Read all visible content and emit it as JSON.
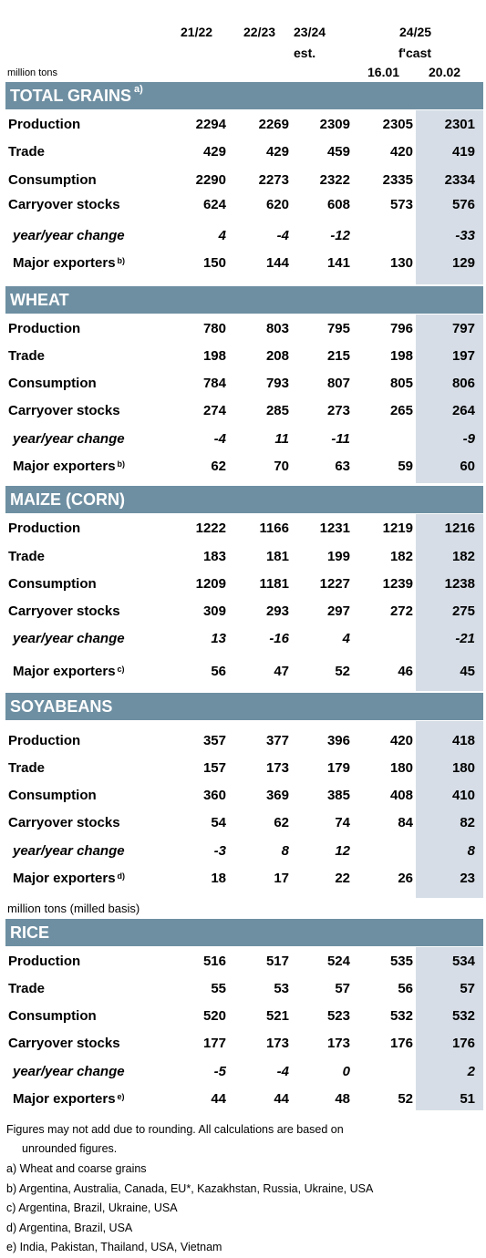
{
  "header": {
    "col1": "21/22",
    "col2": "22/23",
    "col3": "23/24",
    "col3_sub": "est.",
    "forecast": "24/25",
    "forecast_sub": "f'cast",
    "date1": "16.01",
    "date2": "20.02",
    "unit": "million tons"
  },
  "sections": [
    {
      "title": "TOTAL GRAINS",
      "sup": "a)",
      "rows": [
        {
          "label": "Production",
          "values": [
            "2294",
            "2269",
            "2309",
            "2305",
            "2301"
          ]
        },
        {
          "label": "Trade",
          "values": [
            "429",
            "429",
            "459",
            "420",
            "419"
          ]
        },
        {
          "label": "Consumption",
          "values": [
            "2290",
            "2273",
            "2322",
            "2335",
            "2334"
          ]
        },
        {
          "label": "Carryover stocks",
          "values": [
            "624",
            "620",
            "608",
            "573",
            "576"
          ]
        },
        {
          "label": "year/year change",
          "values": [
            "4",
            "-4",
            "-12",
            "",
            "-33"
          ]
        },
        {
          "label": "Major exporters",
          "sup": "b)",
          "values": [
            "150",
            "144",
            "141",
            "130",
            "129"
          ]
        }
      ]
    },
    {
      "title": "WHEAT",
      "sup": "",
      "rows": [
        {
          "label": "Production",
          "values": [
            "780",
            "803",
            "795",
            "796",
            "797"
          ]
        },
        {
          "label": "Trade",
          "values": [
            "198",
            "208",
            "215",
            "198",
            "197"
          ]
        },
        {
          "label": "Consumption",
          "values": [
            "784",
            "793",
            "807",
            "805",
            "806"
          ]
        },
        {
          "label": "Carryover stocks",
          "values": [
            "274",
            "285",
            "273",
            "265",
            "264"
          ]
        },
        {
          "label": "year/year change",
          "values": [
            "-4",
            "11",
            "-11",
            "",
            "-9"
          ]
        },
        {
          "label": "Major exporters",
          "sup": "b)",
          "values": [
            "62",
            "70",
            "63",
            "59",
            "60"
          ]
        }
      ]
    },
    {
      "title": "MAIZE (CORN)",
      "sup": "",
      "rows": [
        {
          "label": "Production",
          "values": [
            "1222",
            "1166",
            "1231",
            "1219",
            "1216"
          ]
        },
        {
          "label": "Trade",
          "values": [
            "183",
            "181",
            "199",
            "182",
            "182"
          ]
        },
        {
          "label": "Consumption",
          "values": [
            "1209",
            "1181",
            "1227",
            "1239",
            "1238"
          ]
        },
        {
          "label": "Carryover stocks",
          "values": [
            "309",
            "293",
            "297",
            "272",
            "275"
          ]
        },
        {
          "label": "year/year change",
          "values": [
            "13",
            "-16",
            "4",
            "",
            "-21"
          ]
        },
        {
          "label": "Major exporters",
          "sup": "c)",
          "values": [
            "56",
            "47",
            "52",
            "46",
            "45"
          ]
        }
      ]
    },
    {
      "title": "SOYABEANS",
      "sup": "",
      "rows": [
        {
          "label": "Production",
          "values": [
            "357",
            "377",
            "396",
            "420",
            "418"
          ]
        },
        {
          "label": "Trade",
          "values": [
            "157",
            "173",
            "179",
            "180",
            "180"
          ]
        },
        {
          "label": "Consumption",
          "values": [
            "360",
            "369",
            "385",
            "408",
            "410"
          ]
        },
        {
          "label": "Carryover stocks",
          "values": [
            "54",
            "62",
            "74",
            "84",
            "82"
          ]
        },
        {
          "label": "year/year change",
          "values": [
            "-3",
            "8",
            "12",
            "",
            "8"
          ]
        },
        {
          "label": "Major exporters",
          "sup": "d)",
          "values": [
            "18",
            "17",
            "22",
            "26",
            "23"
          ]
        }
      ]
    },
    {
      "title": "RICE",
      "sup": "",
      "rows": [
        {
          "label": "Production",
          "values": [
            "516",
            "517",
            "524",
            "535",
            "534"
          ]
        },
        {
          "label": "Trade",
          "values": [
            "55",
            "53",
            "57",
            "56",
            "57"
          ]
        },
        {
          "label": "Consumption",
          "values": [
            "520",
            "521",
            "523",
            "532",
            "532"
          ]
        },
        {
          "label": "Carryover stocks",
          "values": [
            "177",
            "173",
            "173",
            "176",
            "176"
          ]
        },
        {
          "label": "year/year change",
          "values": [
            "-5",
            "-4",
            "0",
            "",
            "2"
          ]
        },
        {
          "label": "Major exporters",
          "sup": "e)",
          "values": [
            "44",
            "44",
            "48",
            "52",
            "51"
          ]
        }
      ]
    }
  ],
  "rice_unit": "million tons (milled basis)",
  "notes": {
    "rounding_1": "Figures may not add due to rounding. All calculations are based on",
    "rounding_2": "unrounded figures.",
    "a": "a) Wheat and coarse grains",
    "b": "b) Argentina, Australia, Canada, EU*, Kazakhstan, Russia, Ukraine, USA",
    "c": "c) Argentina, Brazil, Ukraine, USA",
    "d": "d) Argentina, Brazil, USA",
    "e": "e) India, Pakistan, Thailand, USA, Vietnam"
  },
  "colors": {
    "band": "#6e8fa2",
    "shade": "#d6dde6"
  }
}
